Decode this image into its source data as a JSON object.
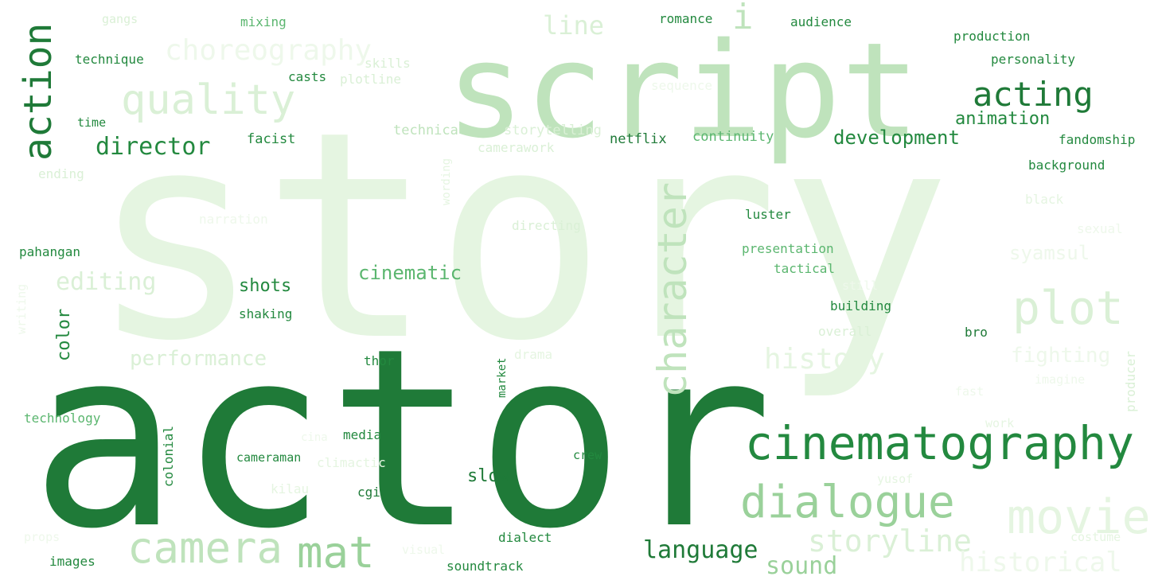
{
  "palette": {
    "darkest": "#1f7a38",
    "dark": "#23893f",
    "medium": "#3c9e56",
    "mid": "#5bb66f",
    "soft": "#9ad19a",
    "light": "#bfe3bc",
    "pale": "#daf0d6",
    "faint": "#e5f5e1",
    "faintest": "#eef8eb"
  },
  "words": [
    {
      "text": "story",
      "weight": 100,
      "shade": "faint",
      "vertical": false
    },
    {
      "text": "actor",
      "weight": 95,
      "shade": "darkest",
      "vertical": false
    },
    {
      "text": "script",
      "weight": 70,
      "shade": "light",
      "vertical": false
    },
    {
      "text": "cinematography",
      "weight": 40,
      "shade": "dark",
      "vertical": false
    },
    {
      "text": "movie",
      "weight": 34,
      "shade": "pale",
      "vertical": false
    },
    {
      "text": "dialogue",
      "weight": 34,
      "shade": "soft",
      "vertical": false
    },
    {
      "text": "camera",
      "weight": 33,
      "shade": "light",
      "vertical": false
    },
    {
      "text": "mat",
      "weight": 33,
      "shade": "soft",
      "vertical": false
    },
    {
      "text": "plot",
      "weight": 34,
      "shade": "light",
      "vertical": false
    },
    {
      "text": "quality",
      "weight": 33,
      "shade": "pale",
      "vertical": false
    },
    {
      "text": "action",
      "weight": 30,
      "shade": "darkest",
      "vertical": true
    },
    {
      "text": "character",
      "weight": 28,
      "shade": "light",
      "vertical": true
    },
    {
      "text": "storyline",
      "weight": 28,
      "shade": "pale",
      "vertical": false
    },
    {
      "text": "acting",
      "weight": 26,
      "shade": "darkest",
      "vertical": false
    },
    {
      "text": "history",
      "weight": 26,
      "shade": "faint",
      "vertical": false
    },
    {
      "text": "historical",
      "weight": 24,
      "shade": "faintest",
      "vertical": false
    },
    {
      "text": "choreography",
      "weight": 24,
      "shade": "faintest",
      "vertical": false
    },
    {
      "text": "line",
      "weight": 22,
      "shade": "pale",
      "vertical": false
    },
    {
      "text": "director",
      "weight": 22,
      "shade": "dark",
      "vertical": false
    },
    {
      "text": "sound",
      "weight": 21,
      "shade": "soft",
      "vertical": false
    },
    {
      "text": "editing",
      "weight": 21,
      "shade": "pale",
      "vertical": false
    },
    {
      "text": "language",
      "weight": 20,
      "shade": "darkest",
      "vertical": false
    },
    {
      "text": "performance",
      "weight": 18,
      "shade": "pale",
      "vertical": false
    },
    {
      "text": "fighting",
      "weight": 18,
      "shade": "faintest",
      "vertical": false
    },
    {
      "text": "syamsul",
      "weight": 16,
      "shade": "faintest",
      "vertical": false
    },
    {
      "text": "development",
      "weight": 16,
      "shade": "dark",
      "vertical": false
    },
    {
      "text": "cinematic",
      "weight": 16,
      "shade": "mid",
      "vertical": false
    },
    {
      "text": "shots",
      "weight": 15,
      "shade": "dark",
      "vertical": false
    },
    {
      "text": "animation",
      "weight": 15,
      "shade": "dark",
      "vertical": false
    },
    {
      "text": "color",
      "weight": 15,
      "shade": "dark",
      "vertical": true
    },
    {
      "text": "slow",
      "weight": 15,
      "shade": "darkest",
      "vertical": false
    },
    {
      "text": "netflix",
      "weight": 12,
      "shade": "darkest",
      "vertical": false
    },
    {
      "text": "continuity",
      "weight": 12,
      "shade": "mid",
      "vertical": false
    },
    {
      "text": "facist",
      "weight": 12,
      "shade": "dark",
      "vertical": false
    },
    {
      "text": "technical",
      "weight": 12,
      "shade": "light",
      "vertical": false
    },
    {
      "text": "storytelling",
      "weight": 12,
      "shade": "pale",
      "vertical": false
    },
    {
      "text": "camerawork",
      "weight": 11,
      "shade": "pale",
      "vertical": false
    },
    {
      "text": "skills",
      "weight": 11,
      "shade": "pale",
      "vertical": false
    },
    {
      "text": "plotline",
      "weight": 11,
      "shade": "pale",
      "vertical": false
    },
    {
      "text": "casts",
      "weight": 11,
      "shade": "dark",
      "vertical": false
    },
    {
      "text": "technique",
      "weight": 11,
      "shade": "dark",
      "vertical": false
    },
    {
      "text": "time",
      "weight": 10,
      "shade": "dark",
      "vertical": false
    },
    {
      "text": "mixing",
      "weight": 11,
      "shade": "mid",
      "vertical": false
    },
    {
      "text": "gangs",
      "weight": 10,
      "shade": "pale",
      "vertical": false
    },
    {
      "text": "romance",
      "weight": 11,
      "shade": "dark",
      "vertical": false
    },
    {
      "text": "audience",
      "weight": 11,
      "shade": "dark",
      "vertical": false
    },
    {
      "text": "production",
      "weight": 11,
      "shade": "dark",
      "vertical": false
    },
    {
      "text": "personality",
      "weight": 11,
      "shade": "dark",
      "vertical": false
    },
    {
      "text": "sequence",
      "weight": 11,
      "shade": "faintest",
      "vertical": false
    },
    {
      "text": "fandomship",
      "weight": 11,
      "shade": "dark",
      "vertical": false
    },
    {
      "text": "background",
      "weight": 11,
      "shade": "dark",
      "vertical": false
    },
    {
      "text": "black",
      "weight": 11,
      "shade": "faint",
      "vertical": false
    },
    {
      "text": "sexual",
      "weight": 11,
      "shade": "faintest",
      "vertical": false
    },
    {
      "text": "luster",
      "weight": 11,
      "shade": "dark",
      "vertical": false
    },
    {
      "text": "presentation",
      "weight": 11,
      "shade": "mid",
      "vertical": false
    },
    {
      "text": "tactical",
      "weight": 11,
      "shade": "mid",
      "vertical": false
    },
    {
      "text": "building",
      "weight": 11,
      "shade": "dark",
      "vertical": false
    },
    {
      "text": "overall",
      "weight": 11,
      "shade": "pale",
      "vertical": false
    },
    {
      "text": "bro",
      "weight": 11,
      "shade": "darkest",
      "vertical": false
    },
    {
      "text": "still",
      "weight": 10,
      "shade": "faintest",
      "vertical": false
    },
    {
      "text": "imagine",
      "weight": 10,
      "shade": "faintest",
      "vertical": false
    },
    {
      "text": "fast",
      "weight": 10,
      "shade": "faintest",
      "vertical": false
    },
    {
      "text": "producer",
      "weight": 11,
      "shade": "pale",
      "vertical": true
    },
    {
      "text": "work",
      "weight": 10,
      "shade": "faint",
      "vertical": false
    },
    {
      "text": "costume",
      "weight": 10,
      "shade": "faint",
      "vertical": false
    },
    {
      "text": "yusof",
      "weight": 10,
      "shade": "faint",
      "vertical": false
    },
    {
      "text": "crew",
      "weight": 10,
      "shade": "dark",
      "vertical": false
    },
    {
      "text": "dialect",
      "weight": 11,
      "shade": "dark",
      "vertical": false
    },
    {
      "text": "soundtrack",
      "weight": 11,
      "shade": "dark",
      "vertical": false
    },
    {
      "text": "images",
      "weight": 11,
      "shade": "dark",
      "vertical": false
    },
    {
      "text": "props",
      "weight": 10,
      "shade": "faintest",
      "vertical": false
    },
    {
      "text": "kilau",
      "weight": 11,
      "shade": "faint",
      "vertical": false
    },
    {
      "text": "cgi",
      "weight": 11,
      "shade": "darkest",
      "vertical": false
    },
    {
      "text": "cameraman",
      "weight": 11,
      "shade": "dark",
      "vertical": false
    },
    {
      "text": "climactic",
      "weight": 11,
      "shade": "faint",
      "vertical": false
    },
    {
      "text": "media",
      "weight": 11,
      "shade": "dark",
      "vertical": false
    },
    {
      "text": "cina",
      "weight": 10,
      "shade": "faintest",
      "vertical": false
    },
    {
      "text": "colonial",
      "weight": 11,
      "shade": "dark",
      "vertical": true
    },
    {
      "text": "technology",
      "weight": 11,
      "shade": "mid",
      "vertical": false
    },
    {
      "text": "writing",
      "weight": 10,
      "shade": "faintest",
      "vertical": true
    },
    {
      "text": "shaking",
      "weight": 11,
      "shade": "dark",
      "vertical": false
    },
    {
      "text": "thor",
      "weight": 11,
      "shade": "dark",
      "vertical": false
    },
    {
      "text": "market",
      "weight": 10,
      "shade": "dark",
      "vertical": true
    },
    {
      "text": "drama",
      "weight": 11,
      "shade": "faint",
      "vertical": false
    },
    {
      "text": "directing",
      "weight": 11,
      "shade": "pale",
      "vertical": false
    },
    {
      "text": "narration",
      "weight": 11,
      "shade": "faintest",
      "vertical": false
    },
    {
      "text": "pahangan",
      "weight": 11,
      "shade": "dark",
      "vertical": false
    },
    {
      "text": "ending",
      "weight": 11,
      "shade": "pale",
      "vertical": false
    },
    {
      "text": "wording",
      "weight": 10,
      "shade": "faint",
      "vertical": true
    },
    {
      "text": "visual",
      "weight": 10,
      "shade": "faintest",
      "vertical": false
    },
    {
      "text": "i",
      "weight": 30,
      "shade": "light",
      "vertical": false
    }
  ]
}
